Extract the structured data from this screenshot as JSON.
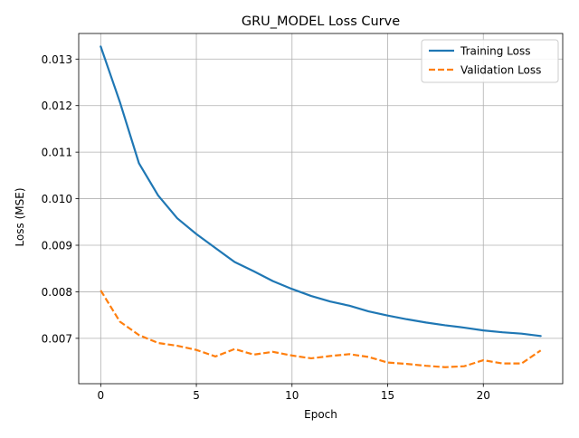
{
  "chart_data": {
    "type": "line",
    "title": "GRU_MODEL Loss Curve",
    "xlabel": "Epoch",
    "ylabel": "Loss (MSE)",
    "x": [
      0,
      1,
      2,
      3,
      4,
      5,
      6,
      7,
      8,
      9,
      10,
      11,
      12,
      13,
      14,
      15,
      16,
      17,
      18,
      19,
      20,
      21,
      22,
      23
    ],
    "xlim": [
      -1.15,
      24.15
    ],
    "ylim": [
      0.006025,
      0.01355
    ],
    "xticks": [
      0,
      5,
      10,
      15,
      20
    ],
    "xtick_labels": [
      "0",
      "5",
      "10",
      "15",
      "20"
    ],
    "yticks": [
      0.007,
      0.008,
      0.009,
      0.01,
      0.011,
      0.012,
      0.013
    ],
    "ytick_labels": [
      "0.007",
      "0.008",
      "0.009",
      "0.010",
      "0.011",
      "0.012",
      "0.013"
    ],
    "grid": true,
    "legend_position": "upper right",
    "series": [
      {
        "name": "Training Loss",
        "color": "#1f77b4",
        "style": "solid",
        "values": [
          0.01327,
          0.01208,
          0.01076,
          0.01007,
          0.00958,
          0.00924,
          0.00894,
          0.00864,
          0.00844,
          0.00823,
          0.00806,
          0.00791,
          0.00779,
          0.0077,
          0.00758,
          0.00749,
          0.00741,
          0.00734,
          0.00728,
          0.00723,
          0.00717,
          0.00713,
          0.0071,
          0.00705
        ]
      },
      {
        "name": "Validation Loss",
        "color": "#ff7f0e",
        "style": "dashed",
        "values": [
          0.00803,
          0.00736,
          0.00707,
          0.0069,
          0.00684,
          0.00675,
          0.00661,
          0.00677,
          0.00665,
          0.00671,
          0.00663,
          0.00657,
          0.00662,
          0.00666,
          0.0066,
          0.00648,
          0.00645,
          0.00641,
          0.00638,
          0.0064,
          0.00653,
          0.00646,
          0.00646,
          0.00674
        ]
      }
    ]
  }
}
